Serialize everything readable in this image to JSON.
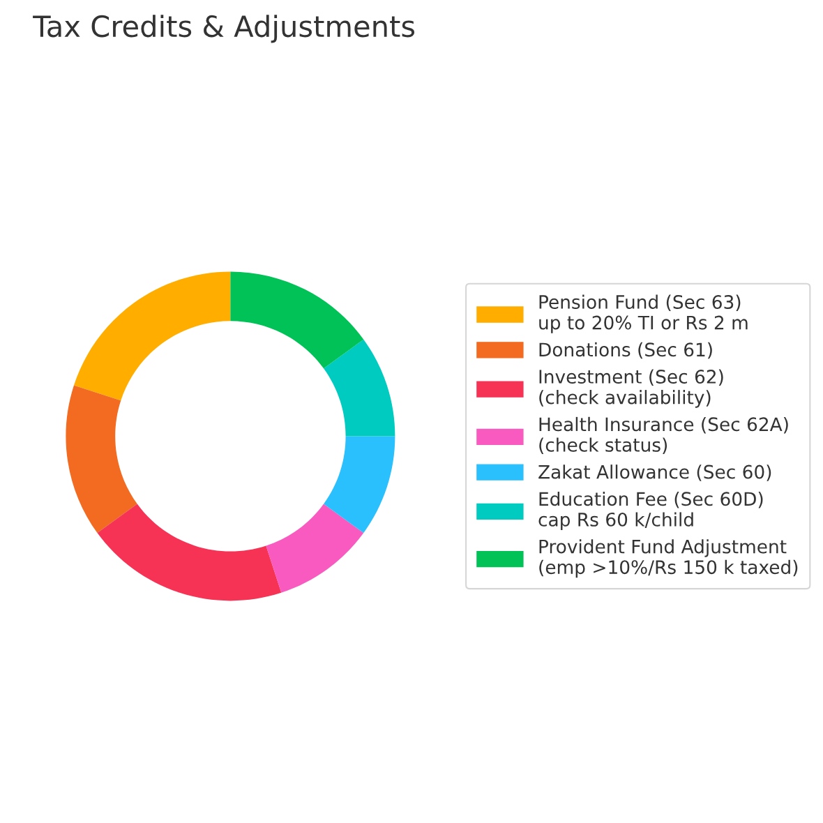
{
  "chart_data": {
    "type": "donut",
    "title": "Tax Credits & Adjustments",
    "categories": [
      "Pension Fund (Sec 63)\nup to 20% TI or Rs 2 m",
      "Donations (Sec 61)",
      "Investment (Sec 62)\n(check availability)",
      "Health Insurance (Sec 62A)\n(check status)",
      "Zakat Allowance (Sec 60)",
      "Education Fee (Sec 60D)\ncap Rs 60 k/child",
      "Provident Fund Adjustment\n(emp >10%/Rs 150 k taxed)"
    ],
    "values": [
      20,
      15,
      20,
      10,
      10,
      10,
      15
    ],
    "colors": [
      "#ffae00",
      "#f26b21",
      "#f63255",
      "#f95abf",
      "#2abffd",
      "#00cbc1",
      "#00c257"
    ],
    "legend": "right"
  }
}
